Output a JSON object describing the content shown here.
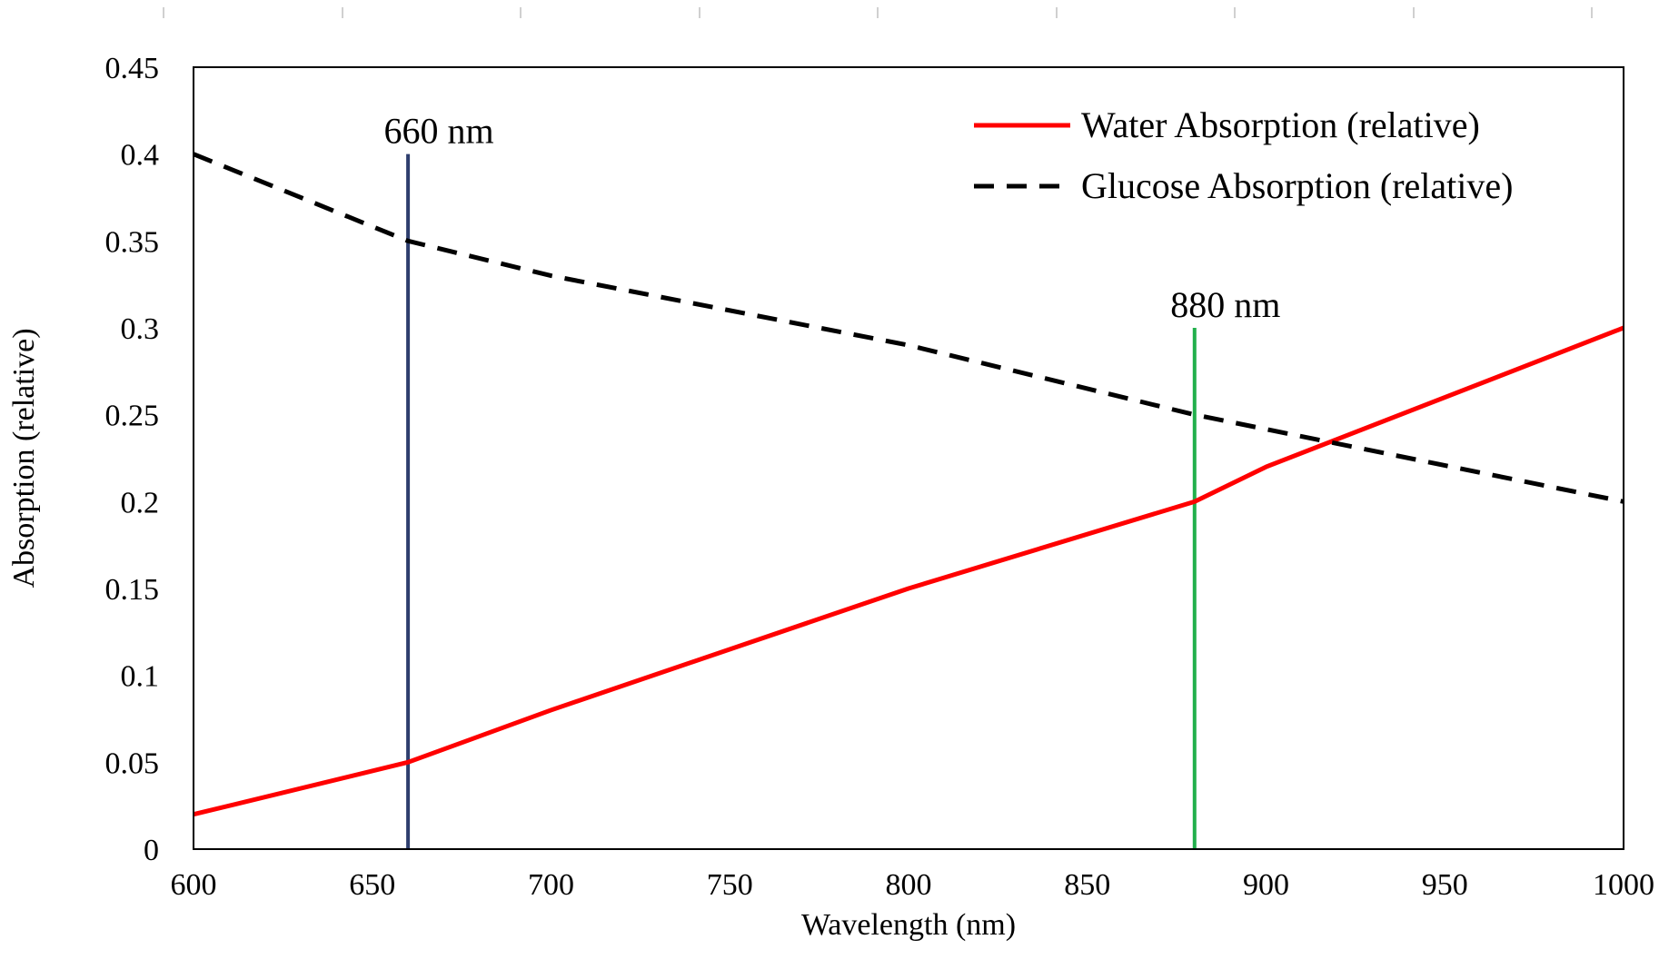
{
  "chart_data": {
    "type": "line",
    "title": "",
    "xlabel": "Wavelength (nm)",
    "ylabel": "Absorption (relative)",
    "xlim": [
      600,
      1000
    ],
    "ylim": [
      0,
      0.45
    ],
    "xticks": [
      600,
      650,
      700,
      750,
      800,
      850,
      900,
      950,
      1000
    ],
    "yticks": [
      0,
      0.05,
      0.1,
      0.15,
      0.2,
      0.25,
      0.3,
      0.35,
      0.4,
      0.45
    ],
    "xtick_labels": [
      "600",
      "650",
      "700",
      "750",
      "800",
      "850",
      "900",
      "950",
      "1000"
    ],
    "ytick_labels": [
      "0",
      "0.05",
      "0.1",
      "0.15",
      "0.2",
      "0.25",
      "0.3",
      "0.35",
      "0.4",
      "0.45"
    ],
    "grid": false,
    "legend_position": "top-right",
    "series": [
      {
        "name": "Water Absorption (relative)",
        "style": "solid",
        "color": "#ff0000",
        "x": [
          600,
          660,
          700,
          800,
          880,
          900,
          1000
        ],
        "y": [
          0.02,
          0.05,
          0.08,
          0.15,
          0.2,
          0.22,
          0.3
        ]
      },
      {
        "name": "Glucose Absorption (relative)",
        "style": "dashed",
        "color": "#000000",
        "x": [
          600,
          660,
          700,
          800,
          880,
          1000
        ],
        "y": [
          0.4,
          0.35,
          0.33,
          0.29,
          0.25,
          0.2
        ]
      }
    ],
    "annotations": [
      {
        "label": "660 nm",
        "x": 660,
        "y_from": 0,
        "y_to": 0.4,
        "color": "#2e3e6e"
      },
      {
        "label": "880 nm",
        "x": 880,
        "y_from": 0,
        "y_to": 0.3,
        "color": "#22b04c"
      }
    ]
  }
}
